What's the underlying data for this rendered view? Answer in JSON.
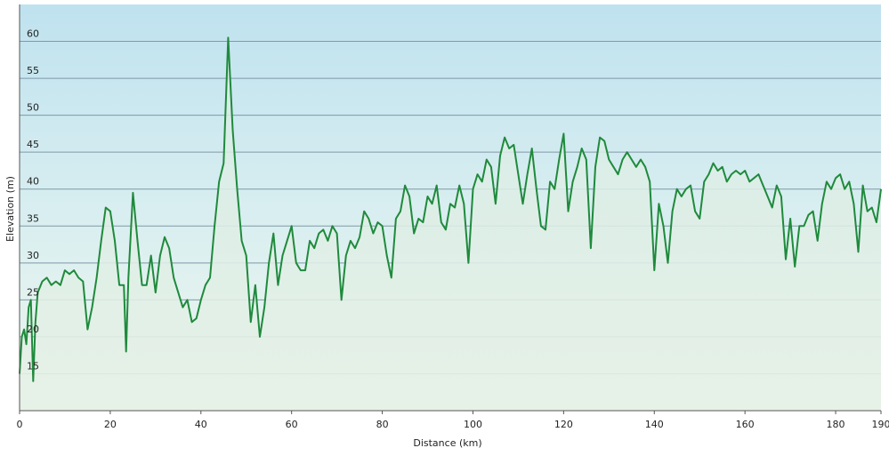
{
  "chart_data": {
    "type": "area",
    "x_label": "Distance  (km)",
    "y_label": "Elevation (m)",
    "x": [
      0,
      0.5,
      1,
      1.5,
      2,
      2.5,
      3,
      3.5,
      4,
      5,
      6,
      7,
      8,
      9,
      10,
      11,
      12,
      13,
      14,
      15,
      16,
      17,
      18,
      19,
      20,
      21,
      22,
      23,
      23.5,
      24,
      25,
      26,
      27,
      28,
      29,
      30,
      31,
      32,
      33,
      34,
      35,
      36,
      37,
      38,
      39,
      40,
      41,
      42,
      43,
      44,
      45,
      46,
      47,
      48,
      49,
      50,
      51,
      52,
      53,
      54,
      55,
      56,
      57,
      58,
      59,
      60,
      61,
      62,
      63,
      64,
      65,
      66,
      67,
      68,
      69,
      70,
      71,
      72,
      73,
      74,
      75,
      76,
      77,
      78,
      79,
      80,
      81,
      82,
      83,
      84,
      85,
      86,
      87,
      88,
      89,
      90,
      91,
      92,
      93,
      94,
      95,
      96,
      97,
      98,
      99,
      100,
      101,
      102,
      103,
      104,
      105,
      106,
      107,
      108,
      109,
      110,
      111,
      112,
      113,
      114,
      115,
      116,
      117,
      118,
      119,
      120,
      121,
      122,
      123,
      124,
      125,
      126,
      127,
      128,
      129,
      130,
      131,
      132,
      133,
      134,
      135,
      136,
      137,
      138,
      139,
      140,
      141,
      142,
      143,
      144,
      145,
      146,
      147,
      148,
      149,
      150,
      151,
      152,
      153,
      154,
      155,
      156,
      157,
      158,
      159,
      160,
      161,
      162,
      163,
      164,
      165,
      166,
      167,
      168,
      169,
      170,
      171,
      172,
      173,
      174,
      175,
      176,
      177,
      178,
      179,
      180,
      181,
      182,
      183,
      184,
      185,
      186,
      187,
      188,
      189,
      190
    ],
    "values": [
      15,
      20,
      21,
      19,
      24,
      25,
      14,
      22,
      26,
      27.5,
      28,
      27,
      27.5,
      27,
      29,
      28.5,
      29,
      28,
      27.5,
      21,
      24,
      28,
      33,
      37.5,
      37,
      33,
      27,
      27,
      18,
      28,
      39.5,
      33,
      27,
      27,
      31,
      26,
      31,
      33.5,
      32,
      28,
      26,
      24,
      25,
      22,
      22.5,
      25,
      27,
      28,
      35,
      41,
      43.5,
      60.5,
      48,
      40,
      33,
      31,
      22,
      27,
      20,
      24,
      30,
      34,
      27,
      31,
      33,
      35,
      30,
      29,
      29,
      33,
      32,
      34,
      34.5,
      33,
      35,
      34,
      25,
      31,
      33,
      32,
      33.5,
      37,
      36,
      34,
      35.5,
      35,
      31,
      28,
      36,
      37,
      40.5,
      39,
      34,
      36,
      35.5,
      39,
      38,
      40.5,
      35.5,
      34.5,
      38,
      37.5,
      40.5,
      38,
      30,
      40,
      42,
      41,
      44,
      43,
      38,
      44.5,
      47,
      45.5,
      46,
      42,
      38,
      42,
      45.5,
      40,
      35,
      34.5,
      41,
      40,
      44,
      47.5,
      37,
      41,
      43,
      45.5,
      44,
      32,
      43,
      47,
      46.5,
      44,
      43,
      42,
      44,
      45,
      44,
      43,
      44,
      43,
      41,
      29,
      38,
      35,
      30,
      37,
      40,
      39,
      40,
      40.5,
      37,
      36,
      41,
      42,
      43.5,
      42.5,
      43,
      41,
      42,
      42.5,
      42,
      42.5,
      41,
      41.5,
      42,
      40.5,
      39,
      37.5,
      40.5,
      39,
      30.5,
      36,
      29.5,
      35,
      35,
      36.5,
      37,
      33,
      38,
      41,
      40,
      41.5,
      42,
      40,
      41,
      38,
      31.5,
      40.5,
      37,
      37.5,
      35.5,
      40
    ],
    "color": "#1f8a3c",
    "xlim": [
      0,
      190
    ],
    "xticks": [
      0,
      20,
      40,
      60,
      80,
      100,
      120,
      140,
      160,
      180,
      190
    ],
    "ylim": [
      10,
      65
    ],
    "yticks": [
      15,
      20,
      25,
      30,
      35,
      40,
      45,
      50,
      55,
      60
    ],
    "grid": true
  }
}
